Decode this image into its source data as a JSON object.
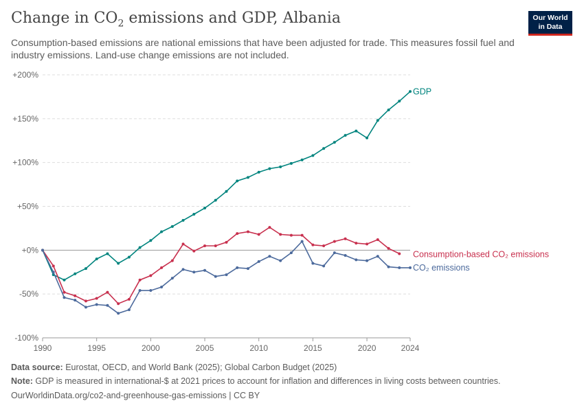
{
  "header": {
    "title_main": "Change in CO",
    "title_sub": "2",
    "title_rest": " emissions and GDP, Albania",
    "subtitle": "Consumption-based emissions are national emissions that have been adjusted for trade. This measures fossil fuel and industry emissions. Land-use change emissions are not included."
  },
  "logo": {
    "line1": "Our World",
    "line2": "in Data",
    "bg": "#002147",
    "accent": "#ce261e"
  },
  "footer": {
    "source_label": "Data source:",
    "source_text": " Eurostat, OECD, and World Bank (2025); Global Carbon Budget (2025)",
    "note_label": "Note:",
    "note_text": " GDP is measured in international-$ at 2021 prices to account for inflation and differences in living costs between countries.",
    "url": "OurWorldinData.org/co2-and-greenhouse-gas-emissions | CC BY"
  },
  "chart_data": {
    "type": "line",
    "ylim": [
      -100,
      200
    ],
    "xlim": [
      1990,
      2024
    ],
    "y_ticks": [
      -100,
      -50,
      0,
      50,
      100,
      150,
      200
    ],
    "y_tick_labels": [
      "-100%",
      "-50%",
      "+0%",
      "+50%",
      "+100%",
      "+150%",
      "+200%"
    ],
    "x_ticks": [
      1990,
      1995,
      2000,
      2005,
      2010,
      2015,
      2020,
      2024
    ],
    "x_tick_labels": [
      "1990",
      "1995",
      "2000",
      "2005",
      "2010",
      "2015",
      "2020",
      "2024"
    ],
    "grid": true,
    "legend": "inline-right",
    "x": [
      1990,
      1991,
      1992,
      1993,
      1994,
      1995,
      1996,
      1997,
      1998,
      1999,
      2000,
      2001,
      2002,
      2003,
      2004,
      2005,
      2006,
      2007,
      2008,
      2009,
      2010,
      2011,
      2012,
      2013,
      2014,
      2015,
      2016,
      2017,
      2018,
      2019,
      2020,
      2021,
      2022,
      2023,
      2024
    ],
    "series": [
      {
        "name": "GDP",
        "color": "#00847e",
        "values": [
          0,
          -28,
          -34,
          -27,
          -21,
          -10,
          -4,
          -15,
          -8,
          3,
          11,
          21,
          27,
          34,
          41,
          48,
          57,
          67,
          79,
          83,
          89,
          93,
          95,
          99,
          103,
          108,
          116,
          123,
          131,
          136,
          128,
          148,
          160,
          170,
          181
        ]
      },
      {
        "name": "Consumption-based CO₂ emissions",
        "color": "#c8304e",
        "values": [
          0,
          -18,
          -48,
          -52,
          -58,
          -55,
          -48,
          -61,
          -56,
          -34,
          -29,
          -20,
          -12,
          7,
          -1,
          5,
          5,
          9,
          19,
          21,
          18,
          26,
          18,
          17,
          17,
          6,
          5,
          10,
          13,
          8,
          7,
          12,
          2,
          -4,
          null
        ]
      },
      {
        "name": "CO₂ emissions",
        "color": "#4c6a9c",
        "values": [
          0,
          -25,
          -54,
          -57,
          -65,
          -62,
          -63,
          -72,
          -68,
          -46,
          -46,
          -42,
          -32,
          -22,
          -25,
          -23,
          -30,
          -28,
          -20,
          -21,
          -13,
          -7,
          -12,
          -3,
          10,
          -15,
          -18,
          -3,
          -6,
          -11,
          -12,
          -7,
          -19,
          -20,
          -20
        ]
      }
    ]
  }
}
